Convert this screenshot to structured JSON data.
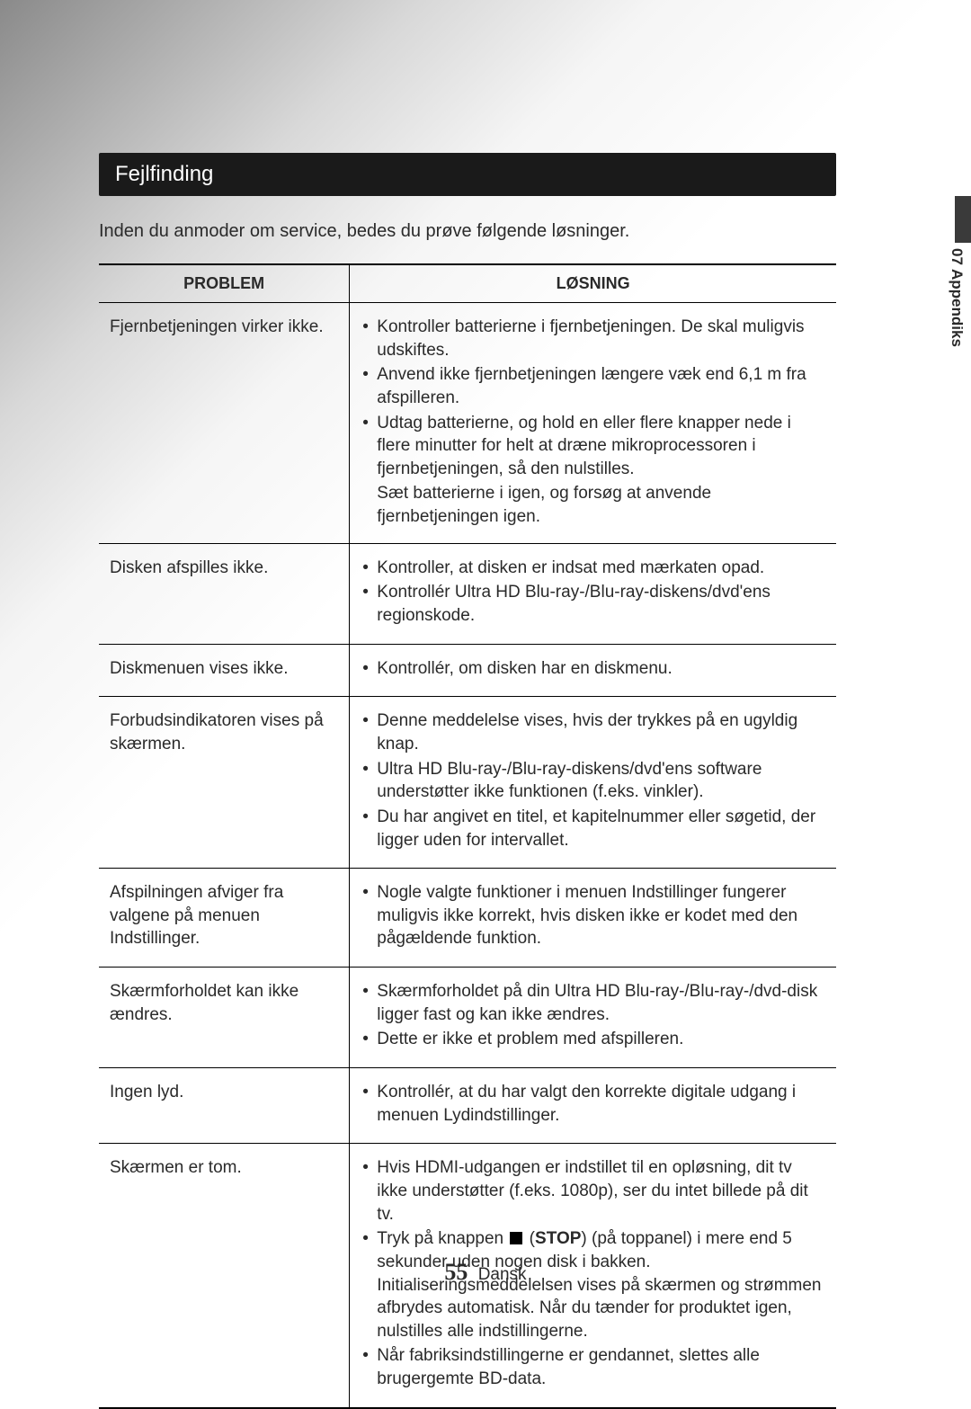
{
  "colors": {
    "section_bar_bg": "#1a1a1a",
    "section_bar_text": "#ffffff",
    "body_text": "#2a2a2a",
    "table_border": "#000000",
    "side_block": "#3a3a3a"
  },
  "typography": {
    "body_family": "Arial, Helvetica, sans-serif",
    "body_size_pt": 14,
    "section_title_size_pt": 18,
    "table_header_size_pt": 13,
    "footer_page_family": "Georgia, Times New Roman, serif"
  },
  "section_title": "Fejlfinding",
  "intro_text": "Inden du anmoder om service, bedes du prøve følgende løsninger.",
  "side_tab": "07  Appendiks",
  "table": {
    "col_widths_pct": [
      34,
      66
    ],
    "headers": {
      "problem": "PROBLEM",
      "solution": "LØSNING"
    },
    "rows": [
      {
        "problem": "Fjernbetjeningen virker ikke.",
        "solution": [
          "Kontroller batterierne i fjernbetjeningen. De skal muligvis udskiftes.",
          "Anvend ikke fjernbetjeningen længere væk end 6,1 m fra afspilleren.",
          "Udtag batterierne, og hold en eller flere knapper nede i flere minutter for helt at dræne mikroprocessoren i fjernbetjeningen, så den nulstilles."
        ],
        "solution_tail": "Sæt batterierne i igen, og forsøg at anvende fjernbetjeningen igen."
      },
      {
        "problem": "Disken afspilles ikke.",
        "solution": [
          "Kontroller, at disken er indsat med mærkaten opad.",
          "Kontrollér Ultra HD Blu-ray-/Blu-ray-diskens/dvd'ens regionskode."
        ]
      },
      {
        "problem": "Diskmenuen vises ikke.",
        "solution": [
          "Kontrollér, om disken har en diskmenu."
        ]
      },
      {
        "problem": "Forbudsindikatoren vises på skærmen.",
        "solution": [
          "Denne meddelelse vises, hvis der trykkes på en ugyldig knap.",
          "Ultra HD Blu-ray-/Blu-ray-diskens/dvd'ens software understøtter ikke funktionen (f.eks. vinkler).",
          "Du har angivet en titel, et kapitelnummer eller søgetid, der ligger uden for intervallet."
        ]
      },
      {
        "problem": "Afspilningen afviger fra valgene på menuen Indstillinger.",
        "solution": [
          "Nogle valgte funktioner i menuen Indstillinger fungerer muligvis ikke korrekt, hvis disken ikke er kodet med den pågældende funktion."
        ]
      },
      {
        "problem": "Skærmforholdet kan ikke ændres.",
        "solution": [
          "Skærmforholdet på din Ultra HD Blu-ray-/Blu-ray-/dvd-disk ligger fast og kan ikke ændres.",
          "Dette er ikke et problem med afspilleren."
        ]
      },
      {
        "problem": "Ingen lyd.",
        "solution": [
          "Kontrollér, at du har valgt den korrekte digitale udgang i menuen Lydindstillinger."
        ]
      },
      {
        "problem": "Skærmen er tom.",
        "solution_html": [
          "Hvis HDMI-udgangen er indstillet til en opløsning, dit tv ikke understøtter (f.eks. 1080p), ser du intet billede på dit tv.",
          "Tryk på knappen <span class=\"stop-glyph\" data-name=\"stop-icon\" data-interactable=\"false\"></span> (<b>STOP</b>) (på toppanel) i mere end 5 sekunder uden nogen disk i bakken. Initialiseringsmeddelelsen vises på skærmen og strømmen afbrydes automatisk. Når du tænder for produktet igen, nulstilles alle indstillingerne.",
          "Når fabriksindstillingerne er gendannet, slettes alle brugergemte BD-data."
        ]
      }
    ]
  },
  "footer": {
    "page_number": "55",
    "lang": "Dansk"
  }
}
